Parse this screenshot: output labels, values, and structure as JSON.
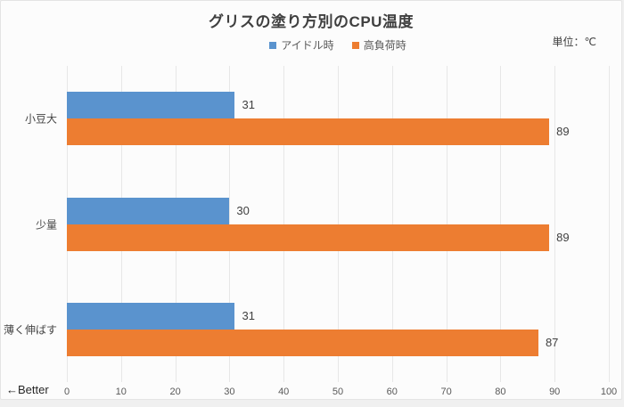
{
  "unit_label": "単位：℃",
  "better_note": "←Better",
  "colors": {
    "idle_blue": "#5A93CE",
    "load_orange": "#ED7D31",
    "gridline": "#E7E7E7",
    "background": "#FCFCFC",
    "title_text": "#3F3F3F",
    "axis_text": "#595959"
  },
  "chart_data": {
    "type": "bar",
    "orientation": "horizontal",
    "title": "グリスの塗り方別のCPU温度",
    "categories": [
      "小豆大",
      "少量",
      "薄く伸ばす"
    ],
    "series": [
      {
        "name": "アイドル時",
        "color": "#5A93CE",
        "values": [
          31,
          30,
          31
        ]
      },
      {
        "name": "高負荷時",
        "color": "#ED7D31",
        "values": [
          89,
          89,
          87
        ]
      }
    ],
    "xlabel": "",
    "ylabel": "",
    "xlim": [
      0,
      100
    ],
    "xticks": [
      0,
      10,
      20,
      30,
      40,
      50,
      60,
      70,
      80,
      90,
      100
    ],
    "grid": true,
    "legend_position": "top",
    "value_labels": "outside-end"
  }
}
